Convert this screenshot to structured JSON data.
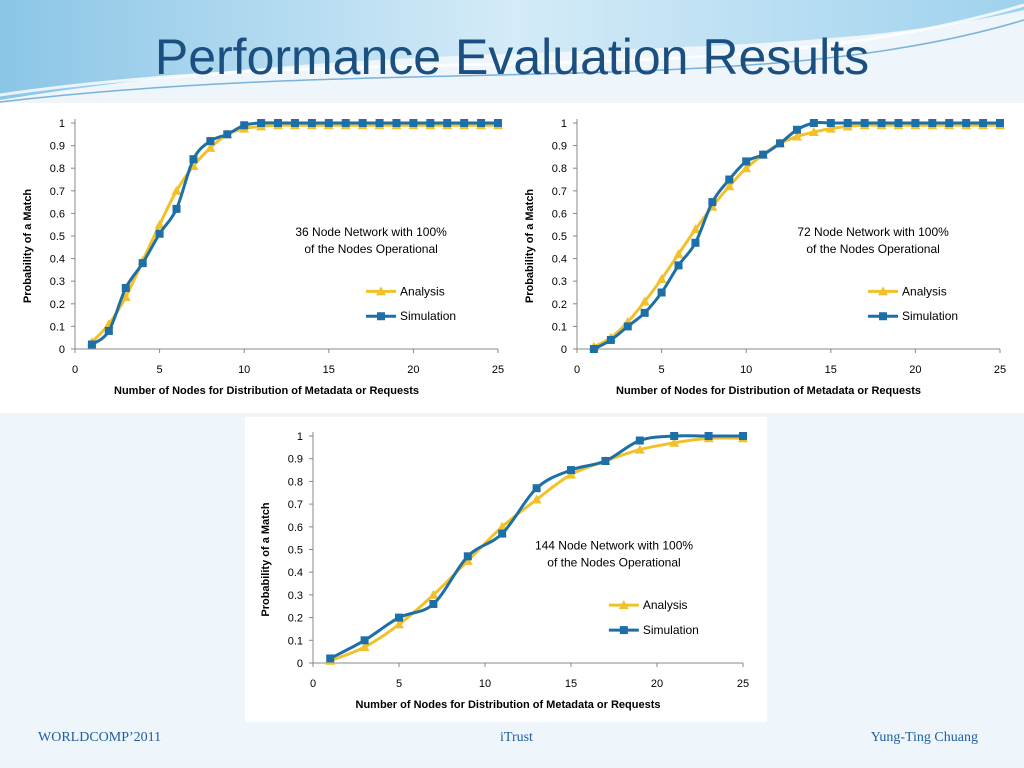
{
  "slide": {
    "title": "Performance Evaluation Results",
    "footer_left": "WORLDCOMP’2011",
    "footer_center": "iTrust",
    "footer_right": "Yung-Ting Chuang"
  },
  "colors": {
    "analysis": "#f2c02a",
    "simulation": "#1d6fa8",
    "title": "#1a4f7f"
  },
  "chart_data": [
    {
      "type": "line",
      "annotation": [
        "36 Node Network with 100%",
        "of the Nodes Operational"
      ],
      "xlabel": "Number of Nodes for Distribution of Metadata or Requests",
      "ylabel": "Probability of a Match",
      "xlim": [
        0,
        25
      ],
      "ylim": [
        0,
        1
      ],
      "xticks": [
        "0",
        "5",
        "10",
        "15",
        "20",
        "25"
      ],
      "yticks": [
        "0",
        "0.1",
        "0.2",
        "0.3",
        "0.4",
        "0.5",
        "0.6",
        "0.7",
        "0.8",
        "0.9",
        "1"
      ],
      "legend": "right",
      "x": [
        1,
        2,
        3,
        4,
        5,
        6,
        7,
        8,
        9,
        10,
        11,
        12,
        13,
        14,
        15,
        16,
        17,
        18,
        19,
        20,
        21,
        22,
        23,
        24,
        25
      ],
      "series": [
        {
          "name": "Analysis",
          "marker": "triangle",
          "values": [
            0.03,
            0.11,
            0.23,
            0.39,
            0.55,
            0.7,
            0.81,
            0.89,
            0.95,
            0.975,
            0.985,
            0.99,
            0.99,
            0.99,
            0.99,
            0.99,
            0.99,
            0.99,
            0.99,
            0.99,
            0.99,
            0.99,
            0.99,
            0.99,
            0.99
          ]
        },
        {
          "name": "Simulation",
          "marker": "square",
          "values": [
            0.02,
            0.08,
            0.27,
            0.38,
            0.51,
            0.62,
            0.84,
            0.92,
            0.95,
            0.99,
            1,
            1,
            1,
            1,
            1,
            1,
            1,
            1,
            1,
            1,
            1,
            1,
            1,
            1,
            1
          ]
        }
      ]
    },
    {
      "type": "line",
      "annotation": [
        "72 Node Network with 100%",
        "of the Nodes Operational"
      ],
      "xlabel": "Number of Nodes for Distribution of Metadata or Requests",
      "ylabel": "Probability of a Match",
      "xlim": [
        0,
        25
      ],
      "ylim": [
        0,
        1
      ],
      "xticks": [
        "0",
        "5",
        "10",
        "15",
        "20",
        "25"
      ],
      "yticks": [
        "0",
        "0.1",
        "0.2",
        "0.3",
        "0.4",
        "0.5",
        "0.6",
        "0.7",
        "0.8",
        "0.9",
        "1"
      ],
      "legend": "right",
      "x": [
        1,
        2,
        3,
        4,
        5,
        6,
        7,
        8,
        9,
        10,
        11,
        12,
        13,
        14,
        15,
        16,
        17,
        18,
        19,
        20,
        21,
        22,
        23,
        24,
        25
      ],
      "series": [
        {
          "name": "Analysis",
          "marker": "triangle",
          "values": [
            0.01,
            0.05,
            0.12,
            0.21,
            0.31,
            0.42,
            0.53,
            0.63,
            0.72,
            0.8,
            0.86,
            0.91,
            0.94,
            0.96,
            0.975,
            0.985,
            0.99,
            0.99,
            0.99,
            0.99,
            0.99,
            0.99,
            0.99,
            0.99,
            0.99
          ]
        },
        {
          "name": "Simulation",
          "marker": "square",
          "values": [
            0,
            0.04,
            0.1,
            0.16,
            0.25,
            0.37,
            0.47,
            0.65,
            0.75,
            0.83,
            0.86,
            0.91,
            0.97,
            1,
            1,
            1,
            1,
            1,
            1,
            1,
            1,
            1,
            1,
            1,
            1
          ]
        }
      ]
    },
    {
      "type": "line",
      "annotation": [
        "144 Node Network with 100%",
        "of the Nodes Operational"
      ],
      "xlabel": "Number of Nodes for Distribution of Metadata or Requests",
      "ylabel": "Probability of a Match",
      "xlim": [
        0,
        25
      ],
      "ylim": [
        0,
        1
      ],
      "xticks": [
        "0",
        "5",
        "10",
        "15",
        "20",
        "25"
      ],
      "yticks": [
        "0",
        "0.1",
        "0.2",
        "0.3",
        "0.4",
        "0.5",
        "0.6",
        "0.7",
        "0.8",
        "0.9",
        "1"
      ],
      "legend": "right",
      "x": [
        1,
        3,
        5,
        7,
        9,
        11,
        13,
        15,
        17,
        19,
        21,
        23,
        25
      ],
      "series": [
        {
          "name": "Analysis",
          "marker": "triangle",
          "values": [
            0.01,
            0.07,
            0.17,
            0.3,
            0.45,
            0.6,
            0.72,
            0.83,
            0.89,
            0.94,
            0.97,
            0.99,
            0.99
          ]
        },
        {
          "name": "Simulation",
          "marker": "square",
          "values": [
            0.02,
            0.1,
            0.2,
            0.26,
            0.47,
            0.57,
            0.77,
            0.85,
            0.89,
            0.98,
            1,
            1,
            1
          ]
        }
      ]
    }
  ]
}
